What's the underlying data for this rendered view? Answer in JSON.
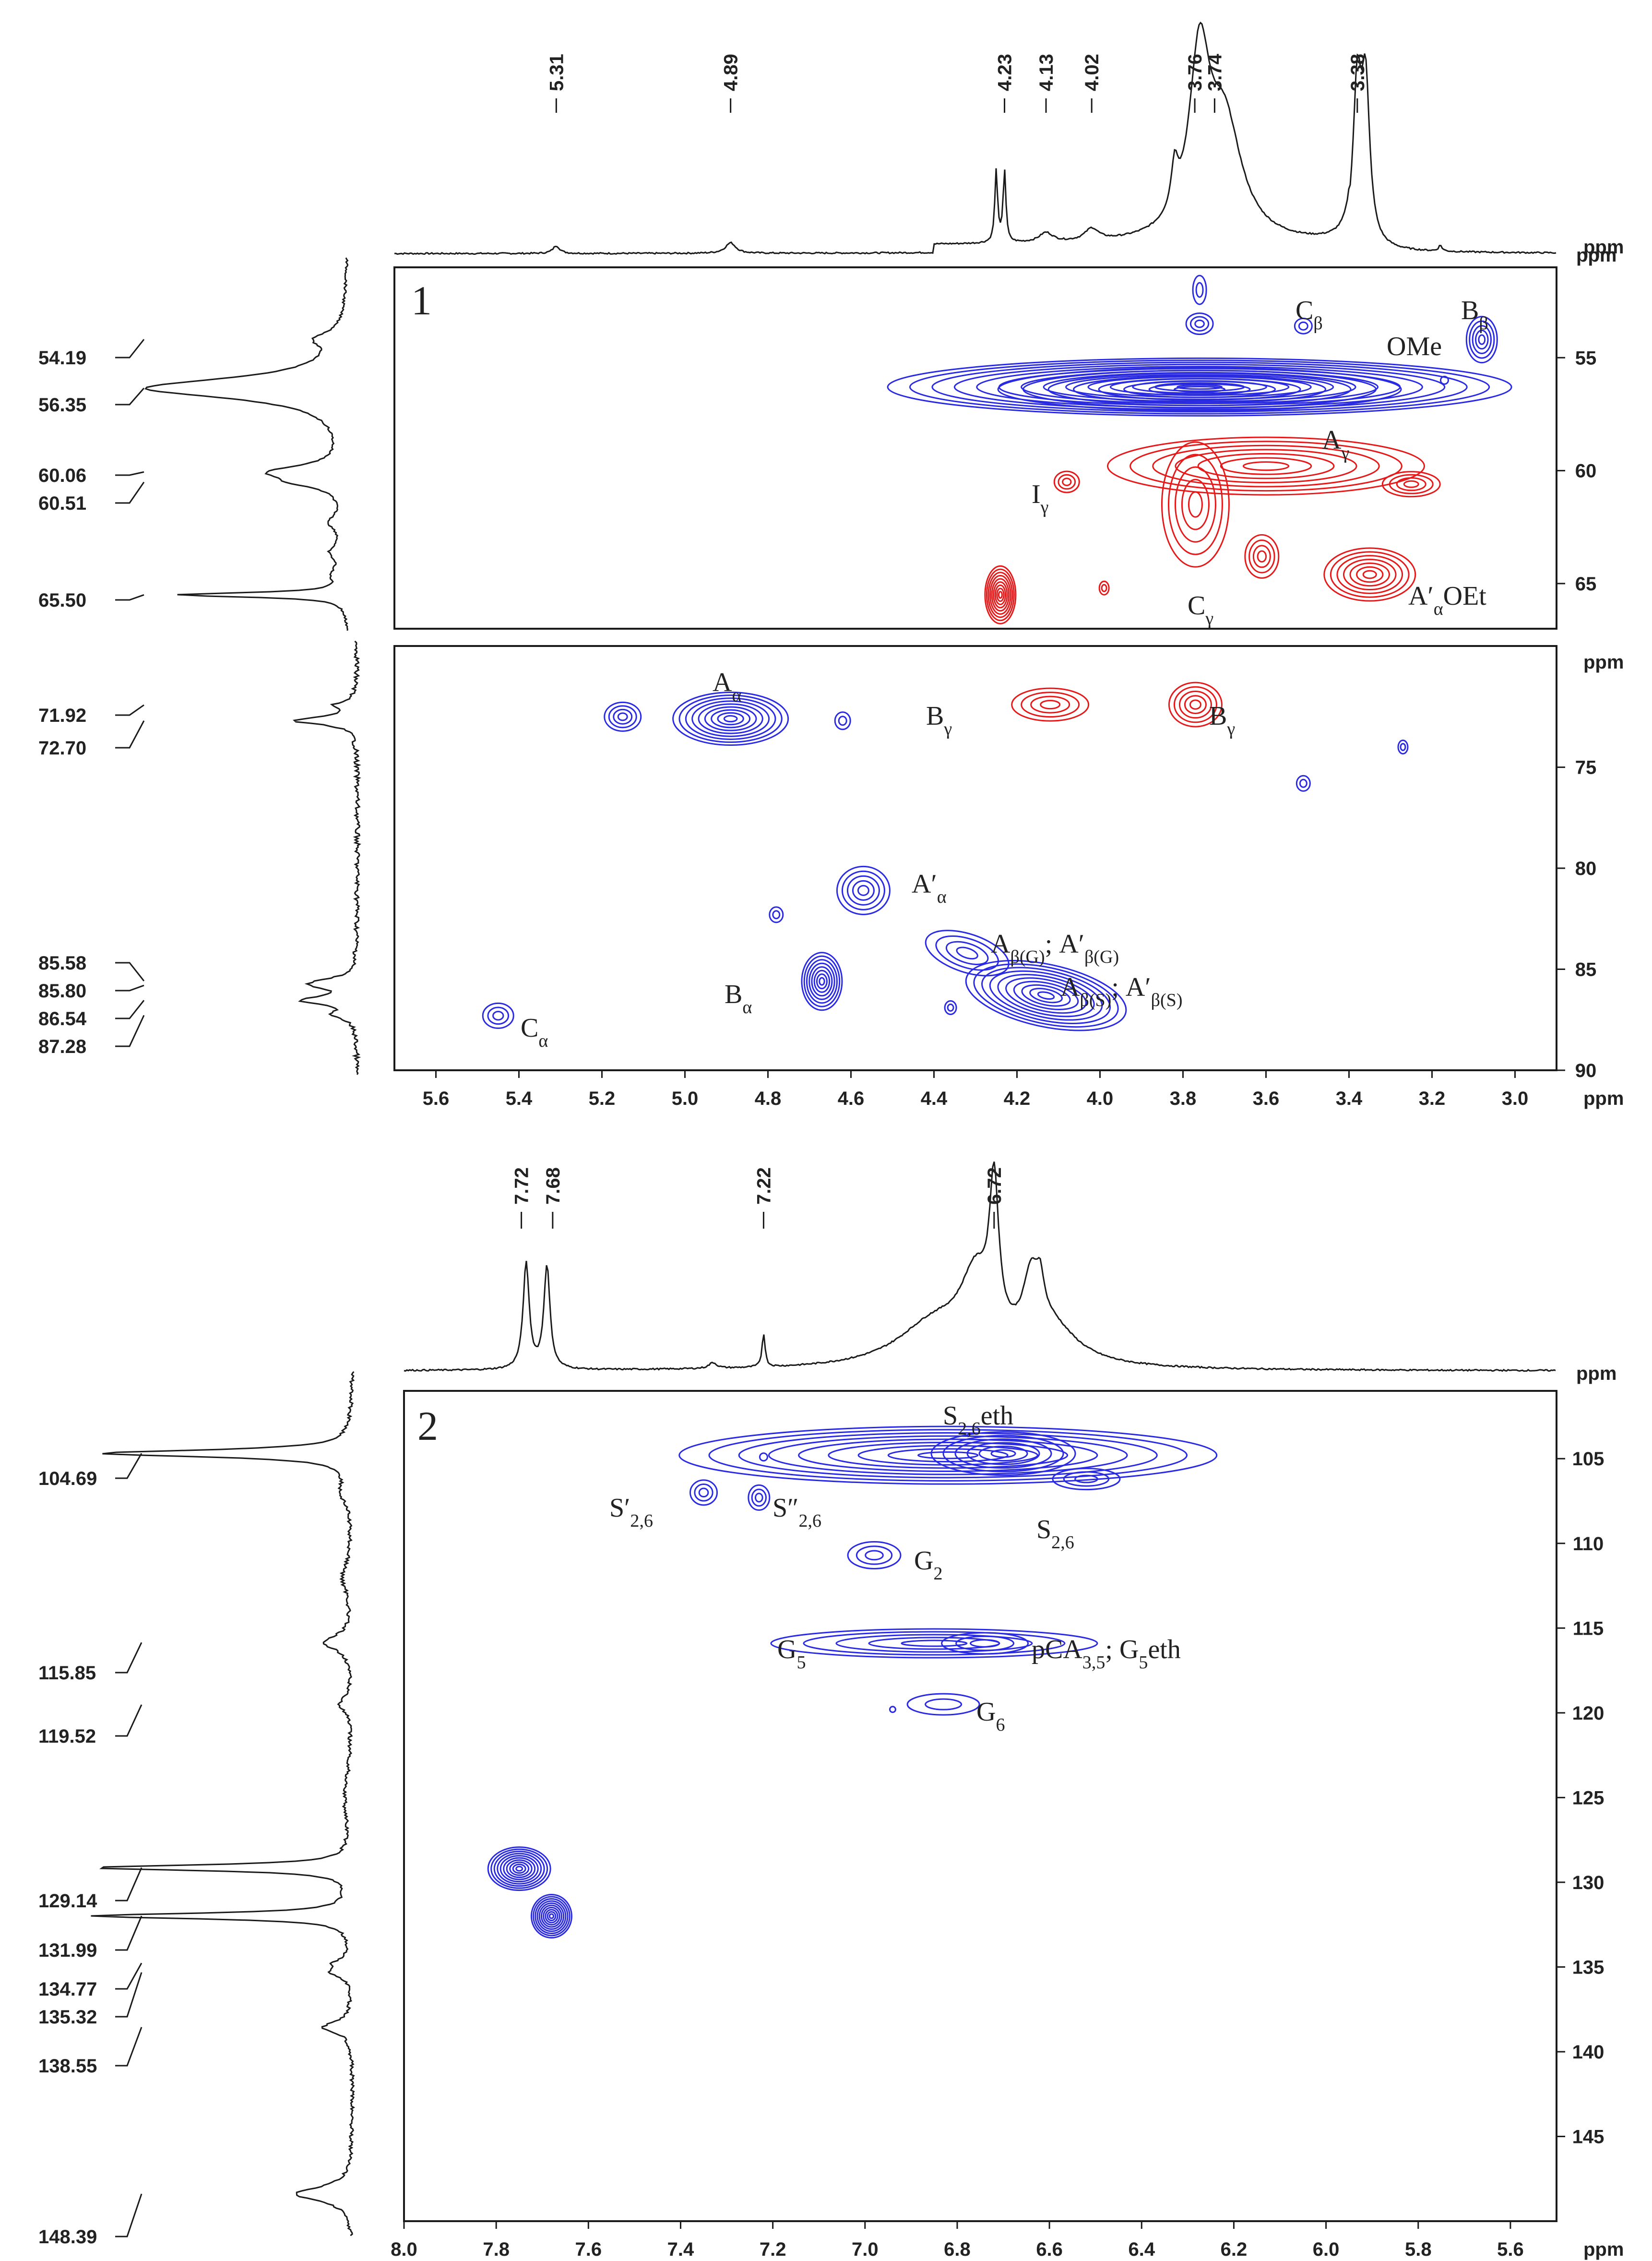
{
  "chart_data": [
    {
      "type": "contour",
      "panel": "1",
      "title": "1",
      "xlabel": "ppm",
      "ylabel": "ppm",
      "x_range": [
        5.7,
        2.9
      ],
      "x_ticks": [
        5.6,
        5.4,
        5.2,
        5.0,
        4.8,
        4.6,
        4.4,
        4.2,
        4.0,
        3.8,
        3.6,
        3.4,
        3.2,
        3.0
      ],
      "sections": [
        {
          "name": "upper",
          "y_range": [
            51,
            67
          ],
          "y_ticks": [
            55,
            60,
            65
          ]
        },
        {
          "name": "lower",
          "y_range": [
            69,
            90
          ],
          "y_ticks": [
            75,
            80,
            85,
            90
          ]
        }
      ],
      "projection_1h_peaks": [
        "5.31",
        "4.89",
        "4.23",
        "4.13",
        "4.02",
        "3.76",
        "3.74",
        "3.38"
      ],
      "projection_13c_peaks": [
        "54.19",
        "56.35",
        "60.06",
        "60.51",
        "65.50",
        "71.92",
        "72.70",
        "85.58",
        "85.80",
        "86.54",
        "87.28"
      ],
      "cross_peaks": [
        {
          "label": "OMe",
          "x": 3.76,
          "y": 56.3,
          "color": "blue"
        },
        {
          "label": "Cβ",
          "x": 3.51,
          "y": 53.6,
          "color": "blue"
        },
        {
          "label": "Bβ",
          "x": 3.08,
          "y": 54.2,
          "color": "blue"
        },
        {
          "label": "Aγ",
          "x": 3.4,
          "y": 60.1,
          "color": "red"
        },
        {
          "label": "Iγ",
          "x": 4.08,
          "y": 60.5,
          "color": "red"
        },
        {
          "label": "Cγ",
          "x": 3.77,
          "y": 63.3,
          "color": "red"
        },
        {
          "label": "A′αOEt",
          "x": 3.35,
          "y": 64.6,
          "color": "red"
        },
        {
          "label": "",
          "x": 4.24,
          "y": 65.5,
          "color": "red"
        },
        {
          "label": "Aα",
          "x": 4.89,
          "y": 72.6,
          "color": "blue"
        },
        {
          "label": "Bγ",
          "x": 4.1,
          "y": 71.9,
          "color": "red"
        },
        {
          "label": "Bγ",
          "x": 3.77,
          "y": 71.9,
          "color": "red"
        },
        {
          "label": "A′α",
          "x": 4.57,
          "y": 81.1,
          "color": "blue"
        },
        {
          "label": "Aβ(G); A′β(G)",
          "x": 4.32,
          "y": 83.8,
          "color": "blue"
        },
        {
          "label": "Bα",
          "x": 4.67,
          "y": 85.6,
          "color": "blue"
        },
        {
          "label": "Aβ(S); A′β(S)",
          "x": 4.13,
          "y": 86.3,
          "color": "blue"
        },
        {
          "label": "Cα",
          "x": 5.45,
          "y": 87.3,
          "color": "blue"
        }
      ]
    },
    {
      "type": "contour",
      "panel": "2",
      "title": "2",
      "xlabel": "ppm",
      "ylabel": "ppm",
      "x_range": [
        8.0,
        5.5
      ],
      "x_ticks": [
        8.0,
        7.8,
        7.6,
        7.4,
        7.2,
        7.0,
        6.8,
        6.6,
        6.4,
        6.2,
        6.0,
        5.8,
        5.6
      ],
      "y_range": [
        101,
        150
      ],
      "y_ticks": [
        105,
        110,
        115,
        120,
        125,
        130,
        135,
        140,
        145
      ],
      "projection_1h_peaks": [
        "7.72",
        "7.68",
        "7.22",
        "6.72"
      ],
      "projection_13c_peaks": [
        "104.69",
        "115.85",
        "119.52",
        "129.14",
        "131.99",
        "134.77",
        "135.32",
        "138.55",
        "148.39"
      ],
      "cross_peaks": [
        {
          "label": "S2,6eth",
          "x": 6.72,
          "y": 104.7,
          "color": "blue"
        },
        {
          "label": "S2,6",
          "x": 6.52,
          "y": 106.4,
          "color": "blue"
        },
        {
          "label": "S′2,6",
          "x": 7.35,
          "y": 107.0,
          "color": "blue"
        },
        {
          "label": "S″2,6",
          "x": 7.23,
          "y": 107.3,
          "color": "blue"
        },
        {
          "label": "G2",
          "x": 6.98,
          "y": 110.7,
          "color": "blue"
        },
        {
          "label": "G5",
          "x": 6.95,
          "y": 115.9,
          "color": "blue"
        },
        {
          "label": "pCA3,5; G5eth",
          "x": 6.76,
          "y": 115.9,
          "color": "blue"
        },
        {
          "label": "G6",
          "x": 6.83,
          "y": 119.5,
          "color": "blue"
        },
        {
          "label": "",
          "x": 7.75,
          "y": 129.2,
          "color": "blue"
        },
        {
          "label": "",
          "x": 7.68,
          "y": 132.0,
          "color": "blue"
        }
      ]
    }
  ]
}
